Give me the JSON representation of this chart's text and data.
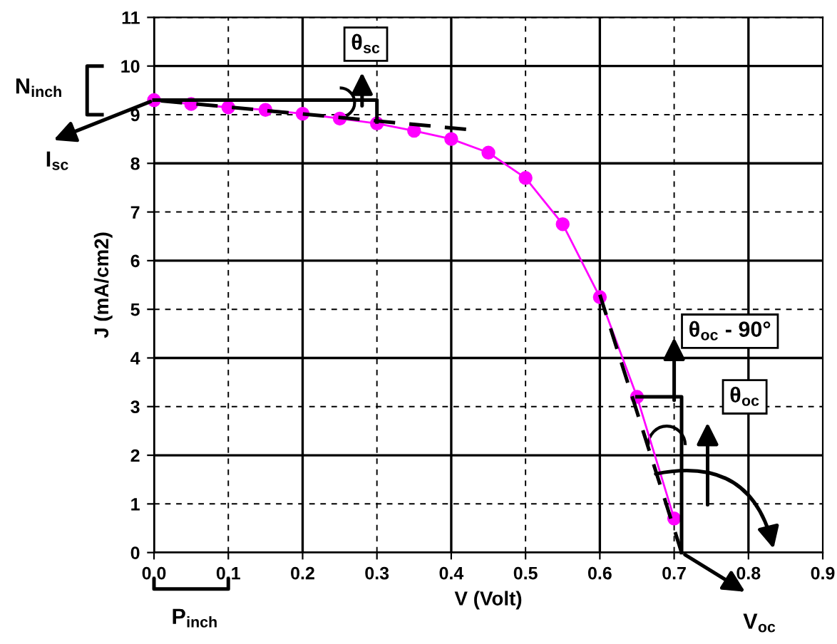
{
  "chart_data": {
    "type": "line",
    "xlabel": "V (Volt)",
    "ylabel": "J (mA/cm2)",
    "x": [
      0,
      0.05,
      0.1,
      0.15,
      0.2,
      0.25,
      0.3,
      0.35,
      0.4,
      0.45,
      0.5,
      0.55,
      0.6,
      0.65,
      0.7
    ],
    "series": [
      {
        "color": "#ff00ff",
        "values": [
          9.3,
          9.22,
          9.15,
          9.1,
          9.02,
          8.92,
          8.82,
          8.67,
          8.5,
          8.22,
          7.7,
          6.75,
          5.25,
          3.2,
          0.7
        ],
        "marker": "circle",
        "line_style": "solid"
      },
      {
        "type": "line",
        "color": "#000000",
        "x": [
          0,
          0.42
        ],
        "values": [
          9.3,
          8.7
        ],
        "marker": "none",
        "line_style": "dashed"
      },
      {
        "type": "line",
        "color": "#000000",
        "x": [
          0.6,
          0.71
        ],
        "values": [
          5.3,
          0
        ],
        "marker": "none",
        "line_style": "dashed"
      }
    ],
    "xlim": [
      0,
      0.9
    ],
    "ylim": [
      0,
      11
    ],
    "xticks": [
      {
        "value": 0,
        "label": "0.0"
      },
      0.1,
      0.2,
      0.3,
      0.4,
      0.5,
      0.6,
      0.7,
      0.8,
      0.9
    ],
    "yticks": [
      0,
      1,
      2,
      3,
      4,
      5,
      6,
      7,
      8,
      9,
      10,
      11
    ],
    "grid": true,
    "legend": false,
    "annotations": [
      "θ$_{sc}$",
      "N$_{inch}$",
      "I$_{sc}$",
      "θ$_{oc}$ - 90°",
      "θ$_{oc}$",
      "P$_{inch}$",
      "V$_{oc}$"
    ]
  }
}
